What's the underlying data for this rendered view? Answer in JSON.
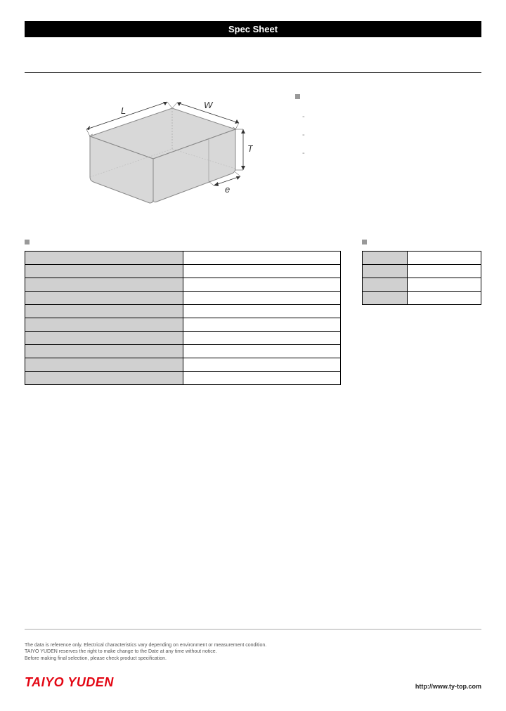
{
  "header": {
    "title": "Spec Sheet"
  },
  "diagram": {
    "labels": {
      "L": "L",
      "W": "W",
      "T": "T",
      "e": "e"
    },
    "fill_color": "#d8d8d8",
    "stroke_color": "#888888",
    "dim_line_color": "#333333"
  },
  "features": {
    "items": [
      "-",
      "-",
      "-"
    ]
  },
  "spec_table": {
    "rows": [
      {
        "label": "",
        "value": ""
      },
      {
        "label": "",
        "value": ""
      },
      {
        "label": "",
        "value": ""
      },
      {
        "label": "",
        "value": ""
      },
      {
        "label": "",
        "value": ""
      },
      {
        "label": "",
        "value": ""
      },
      {
        "label": "",
        "value": ""
      },
      {
        "label": "",
        "value": ""
      },
      {
        "label": "",
        "value": ""
      },
      {
        "label": "",
        "value": ""
      }
    ]
  },
  "pkg_table": {
    "rows": [
      {
        "label": "",
        "value": ""
      },
      {
        "label": "",
        "value": ""
      },
      {
        "label": "",
        "value": ""
      },
      {
        "label": "",
        "value": ""
      }
    ]
  },
  "footer": {
    "line1": "The data is reference only. Electrical characteristics vary depending on environment or measurement condition.",
    "line2": "TAIYO YUDEN reserves the right to make change to the Date at any time without notice.",
    "line3": "Before making final selection, please check product specification.",
    "logo": "TAIYO YUDEN",
    "url": "http://www.ty-top.com"
  }
}
